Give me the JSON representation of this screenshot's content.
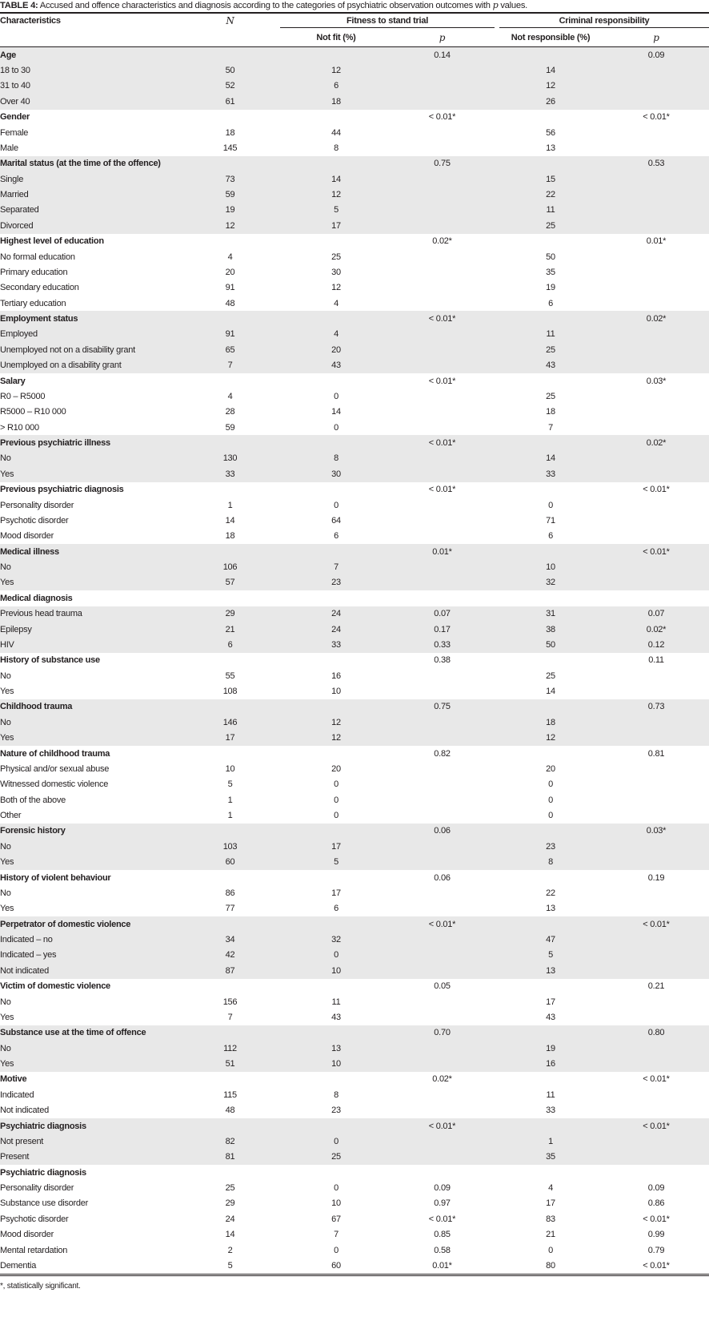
{
  "caption": {
    "label": "TABLE 4:",
    "text_before": " Accused and offence characteristics and diagnosis according to the categories of psychiatric observation outcomes with ",
    "p_symbol": "p",
    "text_after": " values."
  },
  "header": {
    "characteristics": "Characteristics",
    "n": "N",
    "fitness": "Fitness to stand trial",
    "criminal": "Criminal responsibility",
    "not_fit": "Not fit (%)",
    "p_fit": "p",
    "not_responsible": "Not responsible (%)",
    "p_resp": "p"
  },
  "shade_color": "#e8e8e8",
  "groups": [
    {
      "heading": "Age",
      "p_fit": "0.14",
      "p_resp": "0.09",
      "shaded": true,
      "rows": [
        [
          "18 to 30",
          "50",
          "12",
          "",
          "14",
          ""
        ],
        [
          "31 to 40",
          "52",
          "6",
          "",
          "12",
          ""
        ],
        [
          "Over 40",
          "61",
          "18",
          "",
          "26",
          ""
        ]
      ]
    },
    {
      "heading": "Gender",
      "p_fit": "< 0.01*",
      "p_resp": "< 0.01*",
      "shaded": false,
      "rows": [
        [
          "Female",
          "18",
          "44",
          "",
          "56",
          ""
        ],
        [
          "Male",
          "145",
          "8",
          "",
          "13",
          ""
        ]
      ]
    },
    {
      "heading": "Marital status (at the time of the offence)",
      "p_fit": "0.75",
      "p_resp": "0.53",
      "shaded": true,
      "rows": [
        [
          "Single",
          "73",
          "14",
          "",
          "15",
          ""
        ],
        [
          "Married",
          "59",
          "12",
          "",
          "22",
          ""
        ],
        [
          "Separated",
          "19",
          "5",
          "",
          "11",
          ""
        ],
        [
          "Divorced",
          "12",
          "17",
          "",
          "25",
          ""
        ]
      ]
    },
    {
      "heading": "Highest level of education",
      "p_fit": "0.02*",
      "p_resp": "0.01*",
      "shaded": false,
      "rows": [
        [
          "No formal education",
          "4",
          "25",
          "",
          "50",
          ""
        ],
        [
          "Primary education",
          "20",
          "30",
          "",
          "35",
          ""
        ],
        [
          "Secondary education",
          "91",
          "12",
          "",
          "19",
          ""
        ],
        [
          "Tertiary education",
          "48",
          "4",
          "",
          "6",
          ""
        ]
      ]
    },
    {
      "heading": "Employment status",
      "p_fit": "< 0.01*",
      "p_resp": "0.02*",
      "shaded": true,
      "rows": [
        [
          "Employed",
          "91",
          "4",
          "",
          "11",
          ""
        ],
        [
          "Unemployed not on a disability grant",
          "65",
          "20",
          "",
          "25",
          ""
        ],
        [
          "Unemployed on a disability grant",
          "7",
          "43",
          "",
          "43",
          ""
        ]
      ]
    },
    {
      "heading": "Salary",
      "p_fit": "< 0.01*",
      "p_resp": "0.03*",
      "shaded": false,
      "rows": [
        [
          "R0 – R5000",
          "4",
          "0",
          "",
          "25",
          ""
        ],
        [
          "R5000 – R10 000",
          "28",
          "14",
          "",
          "18",
          ""
        ],
        [
          "> R10 000",
          "59",
          "0",
          "",
          "7",
          ""
        ]
      ]
    },
    {
      "heading": "Previous psychiatric illness",
      "p_fit": "< 0.01*",
      "p_resp": "0.02*",
      "shaded": true,
      "rows": [
        [
          "No",
          "130",
          "8",
          "",
          "14",
          ""
        ],
        [
          "Yes",
          "33",
          "30",
          "",
          "33",
          ""
        ]
      ]
    },
    {
      "heading": "Previous psychiatric diagnosis",
      "p_fit": "< 0.01*",
      "p_resp": "< 0.01*",
      "shaded": false,
      "rows": [
        [
          "Personality disorder",
          "1",
          "0",
          "",
          "0",
          ""
        ],
        [
          "Psychotic disorder",
          "14",
          "64",
          "",
          "71",
          ""
        ],
        [
          "Mood disorder",
          "18",
          "6",
          "",
          "6",
          ""
        ]
      ]
    },
    {
      "heading": "Medical illness",
      "p_fit": "0.01*",
      "p_resp": "< 0.01*",
      "shaded": true,
      "rows": [
        [
          "No",
          "106",
          "7",
          "",
          "10",
          ""
        ],
        [
          "Yes",
          "57",
          "23",
          "",
          "32",
          ""
        ]
      ]
    },
    {
      "heading": "Medical diagnosis",
      "p_fit": "",
      "p_resp": "",
      "shaded": true,
      "heading_shaded": false,
      "rows": [
        [
          "Previous head trauma",
          "29",
          "24",
          "0.07",
          "31",
          "0.07"
        ],
        [
          "Epilepsy",
          "21",
          "24",
          "0.17",
          "38",
          "0.02*"
        ],
        [
          "HIV",
          "6",
          "33",
          "0.33",
          "50",
          "0.12"
        ]
      ]
    },
    {
      "heading": "History of substance use",
      "p_fit": "0.38",
      "p_resp": "0.11",
      "shaded": false,
      "rows": [
        [
          "No",
          "55",
          "16",
          "",
          "25",
          ""
        ],
        [
          "Yes",
          "108",
          "10",
          "",
          "14",
          ""
        ]
      ]
    },
    {
      "heading": "Childhood trauma",
      "p_fit": "0.75",
      "p_resp": "0.73",
      "shaded": true,
      "rows": [
        [
          "No",
          "146",
          "12",
          "",
          "18",
          ""
        ],
        [
          "Yes",
          "17",
          "12",
          "",
          "12",
          ""
        ]
      ]
    },
    {
      "heading": "Nature of childhood trauma",
      "p_fit": "0.82",
      "p_resp": "0.81",
      "shaded": false,
      "rows": [
        [
          "Physical and/or sexual abuse",
          "10",
          "20",
          "",
          "20",
          ""
        ],
        [
          "Witnessed domestic violence",
          "5",
          "0",
          "",
          "0",
          ""
        ],
        [
          "Both of the above",
          "1",
          "0",
          "",
          "0",
          ""
        ],
        [
          "Other",
          "1",
          "0",
          "",
          "0",
          ""
        ]
      ]
    },
    {
      "heading": "Forensic history",
      "p_fit": "0.06",
      "p_resp": "0.03*",
      "shaded": true,
      "rows": [
        [
          "No",
          "103",
          "17",
          "",
          "23",
          ""
        ],
        [
          "Yes",
          "60",
          "5",
          "",
          "8",
          ""
        ]
      ]
    },
    {
      "heading": "History of violent behaviour",
      "p_fit": "0.06",
      "p_resp": "0.19",
      "shaded": false,
      "rows": [
        [
          "No",
          "86",
          "17",
          "",
          "22",
          ""
        ],
        [
          "Yes",
          "77",
          "6",
          "",
          "13",
          ""
        ]
      ]
    },
    {
      "heading": "Perpetrator of domestic violence",
      "p_fit": "< 0.01*",
      "p_resp": "< 0.01*",
      "shaded": true,
      "rows": [
        [
          "Indicated – no",
          "34",
          "32",
          "",
          "47",
          ""
        ],
        [
          "Indicated – yes",
          "42",
          "0",
          "",
          "5",
          ""
        ],
        [
          "Not indicated",
          "87",
          "10",
          "",
          "13",
          ""
        ]
      ]
    },
    {
      "heading": "Victim of domestic violence",
      "p_fit": "0.05",
      "p_resp": "0.21",
      "shaded": false,
      "rows": [
        [
          "No",
          "156",
          "11",
          "",
          "17",
          ""
        ],
        [
          "Yes",
          "7",
          "43",
          "",
          "43",
          ""
        ]
      ]
    },
    {
      "heading": "Substance use at the time of offence",
      "p_fit": "0.70",
      "p_resp": "0.80",
      "shaded": true,
      "rows": [
        [
          "No",
          "112",
          "13",
          "",
          "19",
          ""
        ],
        [
          "Yes",
          "51",
          "10",
          "",
          "16",
          ""
        ]
      ]
    },
    {
      "heading": "Motive",
      "p_fit": "0.02*",
      "p_resp": "< 0.01*",
      "shaded": false,
      "rows": [
        [
          "Indicated",
          "115",
          "8",
          "",
          "11",
          ""
        ],
        [
          "Not indicated",
          "48",
          "23",
          "",
          "33",
          ""
        ]
      ]
    },
    {
      "heading": "Psychiatric diagnosis",
      "p_fit": "< 0.01*",
      "p_resp": "< 0.01*",
      "shaded": true,
      "rows": [
        [
          "Not present",
          "82",
          "0",
          "",
          "1",
          ""
        ],
        [
          "Present",
          "81",
          "25",
          "",
          "35",
          ""
        ]
      ]
    },
    {
      "heading": "Psychiatric diagnosis",
      "p_fit": "",
      "p_resp": "",
      "shaded": false,
      "rows": [
        [
          "Personality disorder",
          "25",
          "0",
          "0.09",
          "4",
          "0.09"
        ],
        [
          "Substance use disorder",
          "29",
          "10",
          "0.97",
          "17",
          "0.86"
        ],
        [
          "Psychotic disorder",
          "24",
          "67",
          "< 0.01*",
          "83",
          "< 0.01*"
        ],
        [
          "Mood disorder",
          "14",
          "7",
          "0.85",
          "21",
          "0.99"
        ],
        [
          "Mental retardation",
          "2",
          "0",
          "0.58",
          "0",
          "0.79"
        ],
        [
          "Dementia",
          "5",
          "60",
          "0.01*",
          "80",
          "< 0.01*"
        ]
      ]
    }
  ],
  "footnote": "*,  statistically significant."
}
